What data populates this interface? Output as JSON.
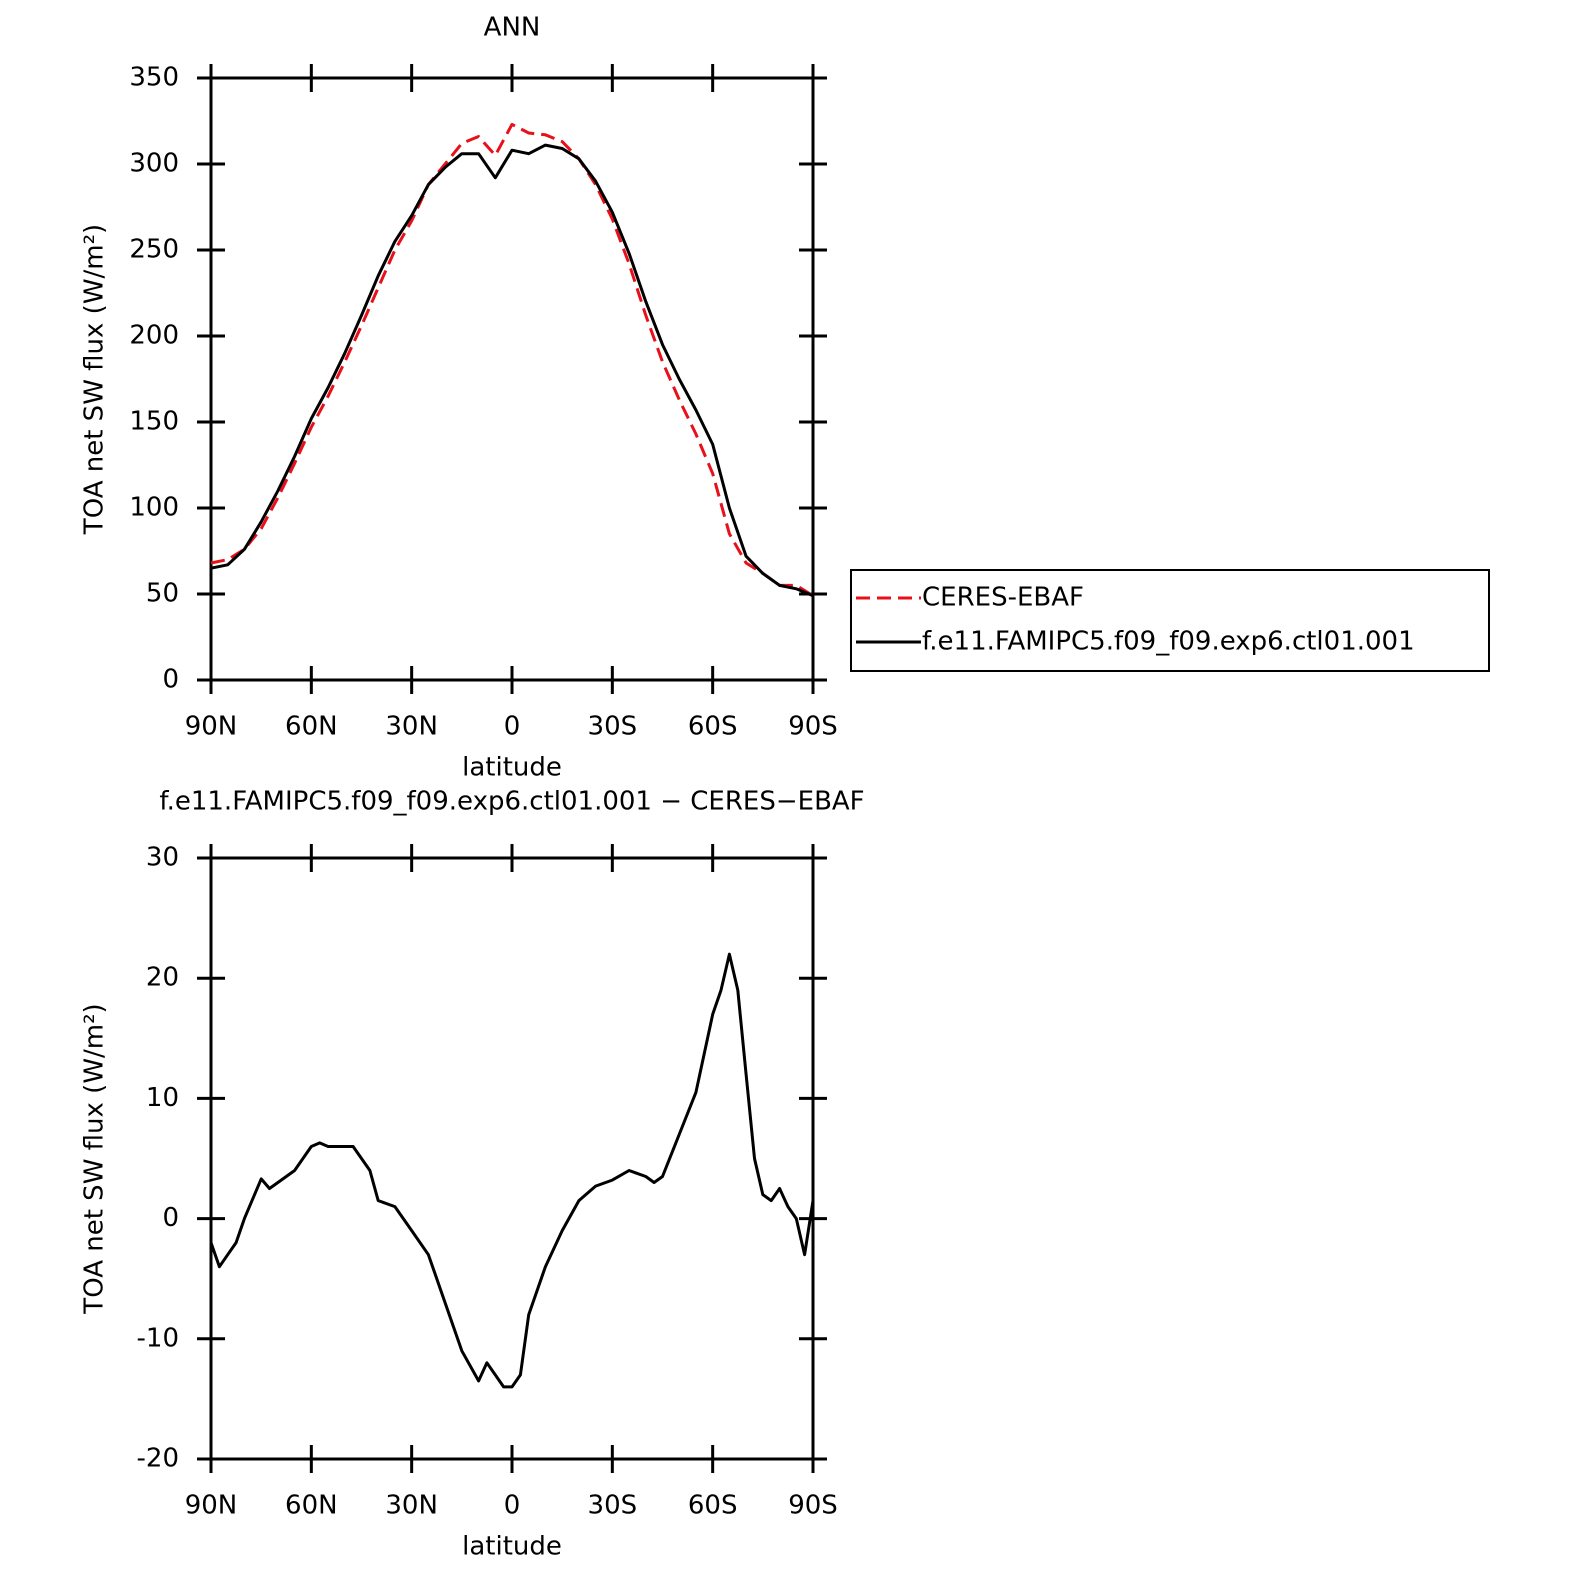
{
  "chart_data": [
    {
      "type": "line",
      "title": "ANN",
      "x_label": "latitude",
      "y_label": "TOA net SW flux (W/m²)",
      "x": [
        90,
        85,
        80,
        75,
        70,
        65,
        60,
        55,
        50,
        45,
        40,
        35,
        30,
        25,
        20,
        15,
        10,
        5,
        0,
        -5,
        -10,
        -15,
        -20,
        -25,
        -30,
        -35,
        -40,
        -45,
        -50,
        -55,
        -60,
        -65,
        -70,
        -75,
        -80,
        -85,
        -90
      ],
      "series": [
        {
          "name": "CERES-EBAF",
          "color": "#e8101a",
          "style": "dashed",
          "values": [
            68,
            70,
            76,
            88,
            106,
            126,
            147,
            165,
            185,
            206,
            228,
            250,
            267,
            288,
            300,
            312,
            316,
            305,
            323,
            318,
            317,
            313,
            303,
            288,
            268,
            242,
            212,
            185,
            163,
            143,
            120,
            85,
            68,
            62,
            55,
            55,
            49
          ]
        },
        {
          "name": "f.e11.FAMIPC5.f09_f09.exp6.ctl01.001",
          "color": "#000000",
          "style": "solid",
          "values": [
            65,
            67,
            76,
            92,
            110,
            130,
            152,
            170,
            190,
            212,
            235,
            255,
            270,
            288,
            298,
            306,
            306,
            292,
            308,
            306,
            311,
            309,
            303,
            290,
            272,
            248,
            220,
            195,
            175,
            157,
            137,
            100,
            72,
            62,
            55,
            53,
            49
          ]
        }
      ],
      "xlim": [
        90,
        -90
      ],
      "xticks": [
        {
          "value": 90,
          "label": "90N"
        },
        {
          "value": 60,
          "label": "60N"
        },
        {
          "value": 30,
          "label": "30N"
        },
        0,
        {
          "value": -30,
          "label": "30S"
        },
        {
          "value": -60,
          "label": "60S"
        },
        {
          "value": -90,
          "label": "90S"
        }
      ],
      "ylim": [
        0,
        350
      ],
      "yticks": [
        0,
        50,
        100,
        150,
        200,
        250,
        300,
        350
      ],
      "legend": "right"
    },
    {
      "type": "line",
      "title": "f.e11.FAMIPC5.f09_f09.exp6.ctl01.001 − CERES−EBAF",
      "x_label": "latitude",
      "y_label": "TOA net SW flux (W/m²)",
      "x": [
        90,
        87.5,
        85,
        82.5,
        80,
        75,
        72.5,
        70,
        65,
        60,
        57.5,
        55,
        50,
        47.5,
        45,
        42.5,
        40,
        35,
        30,
        25,
        20,
        15,
        10,
        7.5,
        5,
        2.5,
        0,
        -2.5,
        -5,
        -10,
        -15,
        -20,
        -25,
        -30,
        -35,
        -40,
        -42.5,
        -45,
        -50,
        -55,
        -60,
        -62.5,
        -65,
        -67.5,
        -70,
        -72.5,
        -75,
        -77.5,
        -80,
        -82.5,
        -85,
        -87.5,
        -90
      ],
      "values": [
        -2,
        -4,
        -3,
        -2,
        0,
        3.3,
        2.5,
        3,
        4,
        6,
        6.3,
        6,
        6,
        6,
        5,
        4,
        1.5,
        1,
        -1,
        -3,
        -7,
        -11,
        -13.5,
        -12,
        -13,
        -14,
        -14,
        -13,
        -8,
        -4,
        -1,
        1.5,
        2.7,
        3.2,
        4,
        3.5,
        3,
        3.5,
        7,
        10.5,
        17,
        19,
        22,
        19,
        12,
        5,
        2,
        1.5,
        2.5,
        1,
        0,
        -3,
        1.5
      ],
      "color": "#000000",
      "xlim": [
        90,
        -90
      ],
      "xticks": [
        {
          "value": 90,
          "label": "90N"
        },
        {
          "value": 60,
          "label": "60N"
        },
        {
          "value": 30,
          "label": "30N"
        },
        0,
        {
          "value": -30,
          "label": "30S"
        },
        {
          "value": -60,
          "label": "60S"
        },
        {
          "value": -90,
          "label": "90S"
        }
      ],
      "ylim": [
        -20,
        30
      ],
      "yticks": [
        -20,
        -10,
        0,
        10,
        20,
        30
      ]
    }
  ]
}
